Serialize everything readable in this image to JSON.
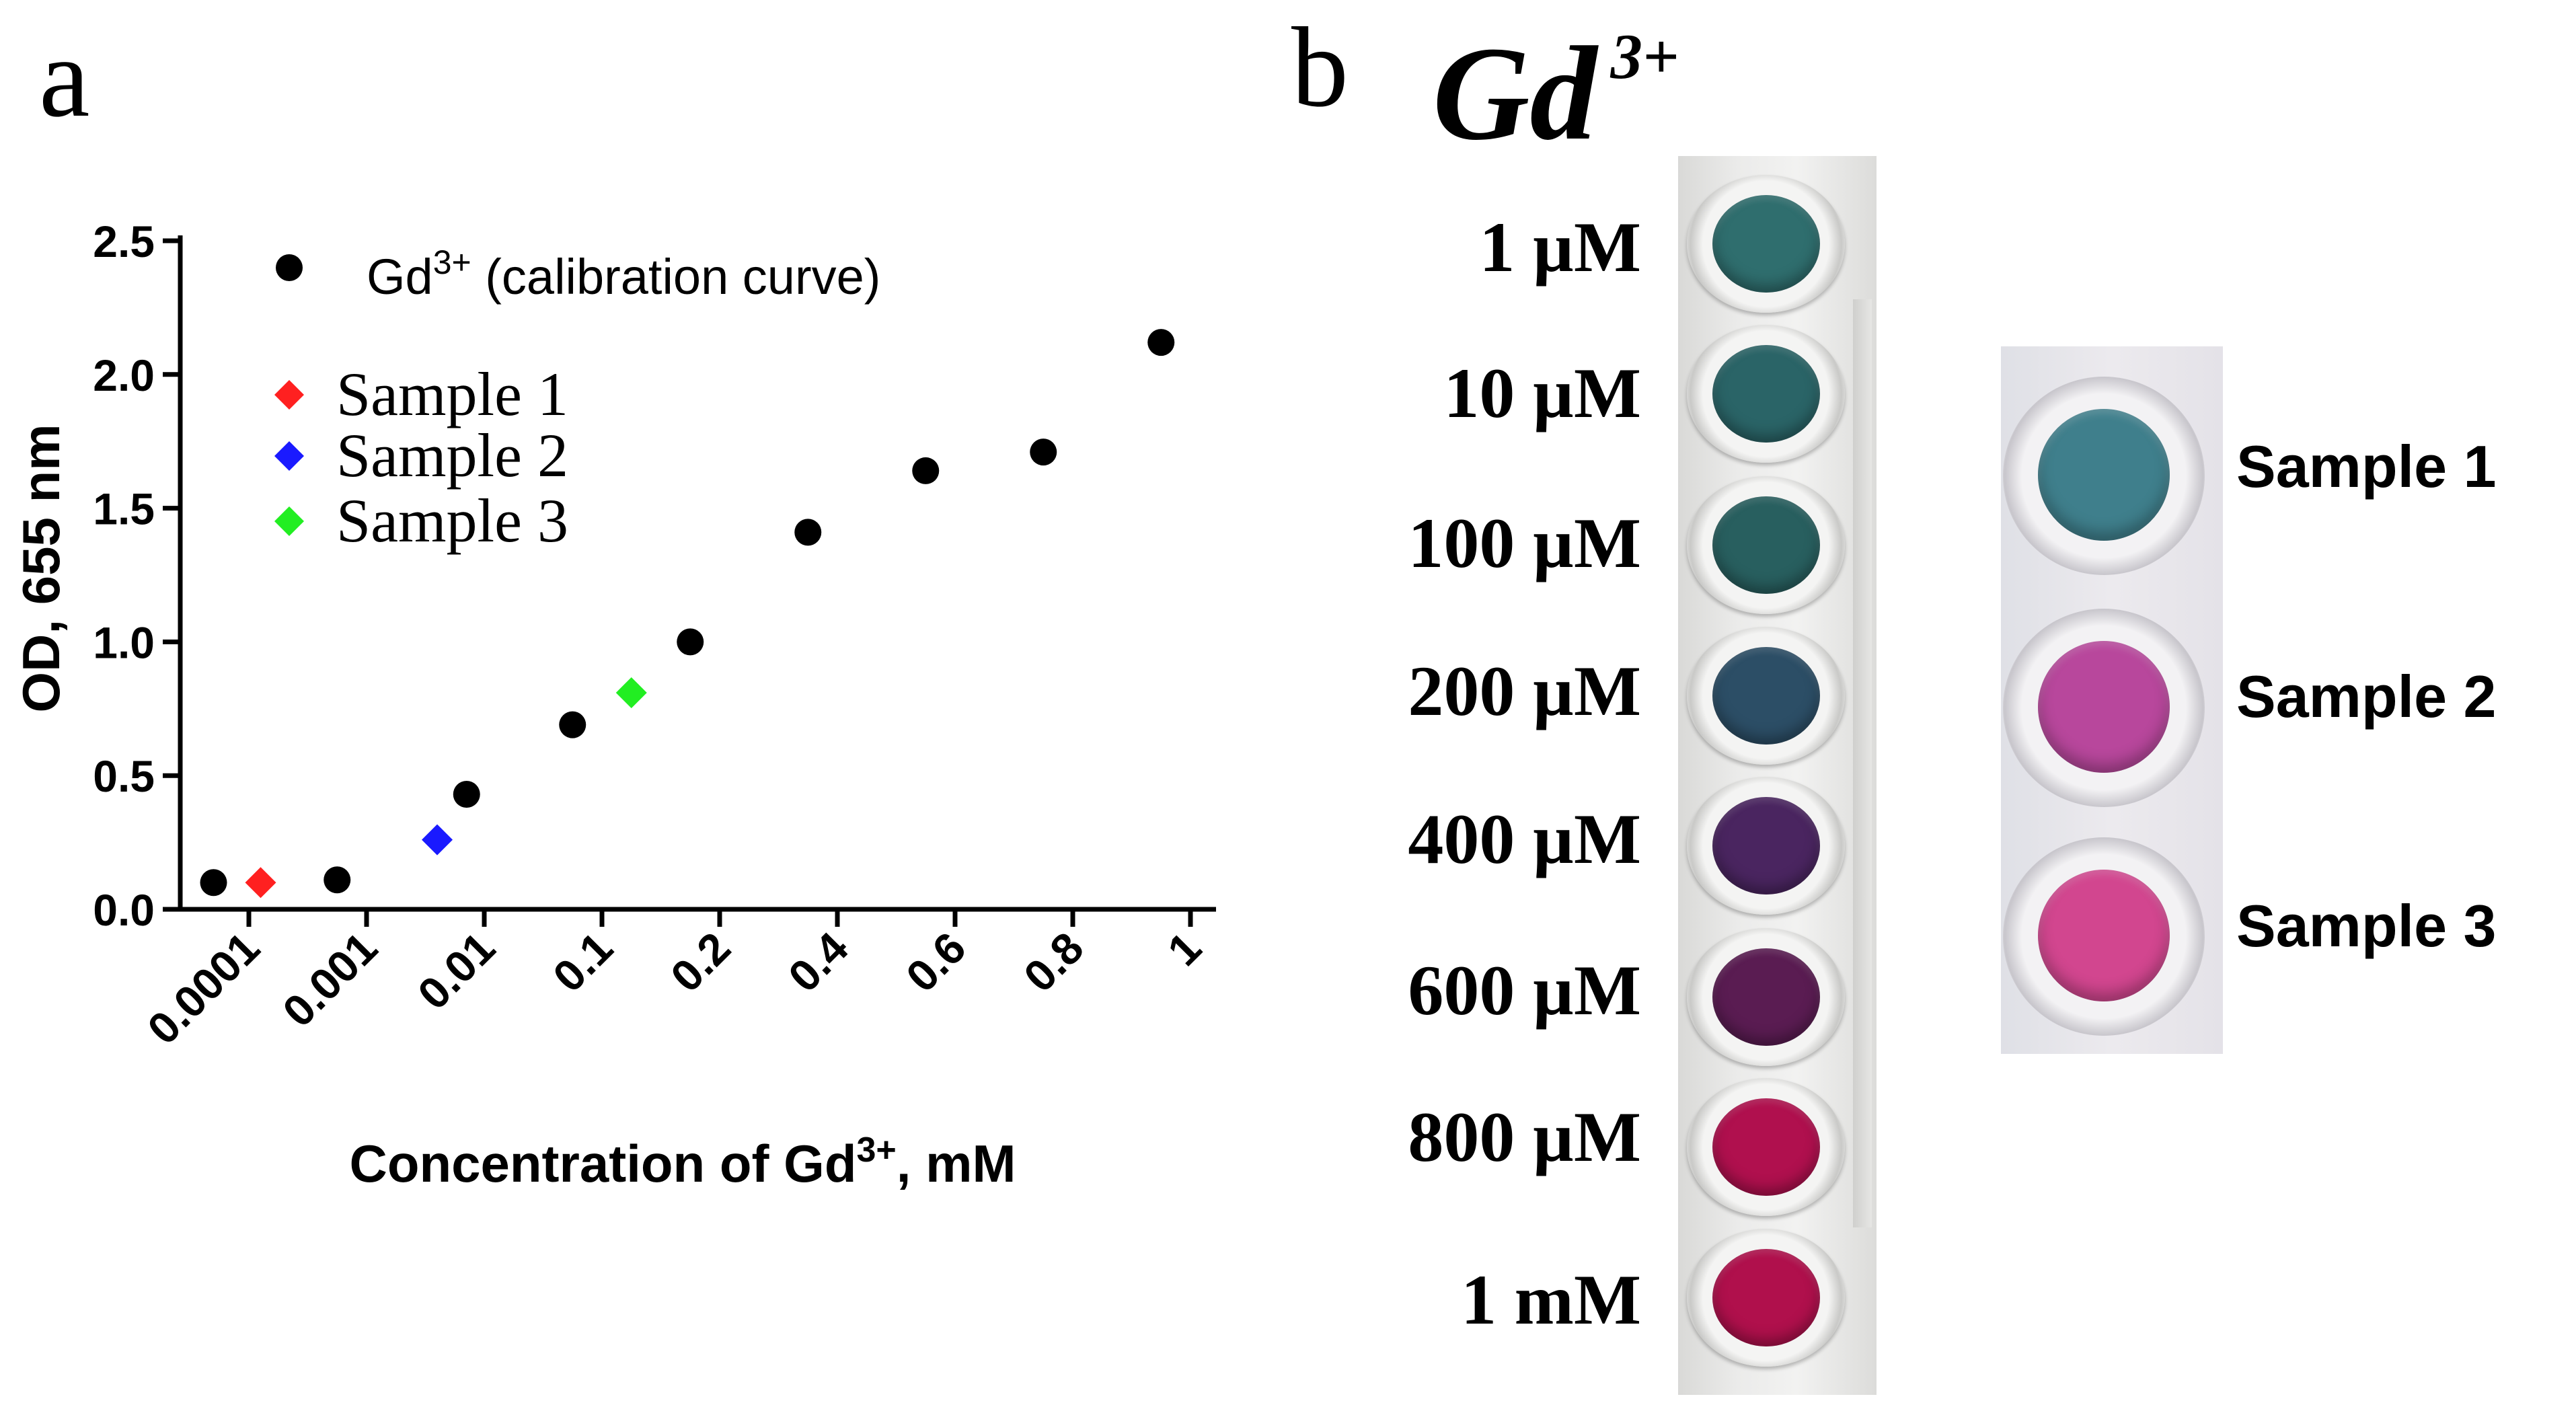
{
  "panel_a_letter": "a",
  "panel_b_letter": "b",
  "chart_data": {
    "type": "scatter",
    "ylabel": "OD, 655 nm",
    "xlabel_main": "Concentration of Gd",
    "xlabel_sup": "3+",
    "xlabel_tail": ", mM",
    "categories": [
      "0.0001",
      "0.001",
      "0.01",
      "0.1",
      "0.2",
      "0.4",
      "0.6",
      "0.8",
      "1"
    ],
    "ylim": [
      0.0,
      2.5
    ],
    "yticks": [
      "0.0",
      "0.5",
      "1.0",
      "1.5",
      "2.0",
      "2.5"
    ],
    "ytick_values": [
      0.0,
      0.5,
      1.0,
      1.5,
      2.0,
      2.5
    ],
    "legend_position": "top-left",
    "series": [
      {
        "name_main": "Gd",
        "name_sup": "3+",
        "name_tail": " (calibration curve)",
        "marker": "circle",
        "color": "#000000",
        "points": [
          {
            "x_index": -0.3,
            "y": 0.1
          },
          {
            "x_index": 0.75,
            "y": 0.11
          },
          {
            "x_index": 1.85,
            "y": 0.43
          },
          {
            "x_index": 2.75,
            "y": 0.69
          },
          {
            "x_index": 3.75,
            "y": 1.0
          },
          {
            "x_index": 4.75,
            "y": 1.41
          },
          {
            "x_index": 5.75,
            "y": 1.64
          },
          {
            "x_index": 6.75,
            "y": 1.71
          },
          {
            "x_index": 7.75,
            "y": 2.12
          }
        ]
      },
      {
        "name": "Sample 1",
        "marker": "diamond",
        "color": "#ff2020",
        "points": [
          {
            "x_index": 0.1,
            "y": 0.1
          }
        ]
      },
      {
        "name": "Sample 2",
        "marker": "diamond",
        "color": "#1a1aff",
        "points": [
          {
            "x_index": 1.6,
            "y": 0.26
          }
        ]
      },
      {
        "name": "Sample 3",
        "marker": "diamond",
        "color": "#22ee22",
        "points": [
          {
            "x_index": 3.25,
            "y": 0.81
          }
        ]
      }
    ]
  },
  "panel_b": {
    "title_main": "Gd",
    "title_sup": "3+",
    "wells": [
      {
        "label": "1 µM",
        "color": "#2f6e6e"
      },
      {
        "label": "10 µM",
        "color": "#2a6467"
      },
      {
        "label": "100 µM",
        "color": "#285f5f"
      },
      {
        "label": "200 µM",
        "color": "#2c4e66"
      },
      {
        "label": "400 µM",
        "color": "#4a2560"
      },
      {
        "label": "600 µM",
        "color": "#5a1c52"
      },
      {
        "label": "800 µM",
        "color": "#b0104e"
      },
      {
        "label": "1 mM",
        "color": "#b0104c"
      }
    ],
    "samples": [
      {
        "label": "Sample 1",
        "color": "#3f7f8c"
      },
      {
        "label": "Sample 2",
        "color": "#b8479c"
      },
      {
        "label": "Sample 3",
        "color": "#d2468f"
      }
    ]
  }
}
